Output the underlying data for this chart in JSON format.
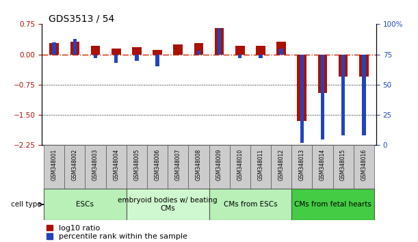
{
  "title": "GDS3513 / 54",
  "samples": [
    "GSM348001",
    "GSM348002",
    "GSM348003",
    "GSM348004",
    "GSM348005",
    "GSM348006",
    "GSM348007",
    "GSM348008",
    "GSM348009",
    "GSM348010",
    "GSM348011",
    "GSM348012",
    "GSM348013",
    "GSM348014",
    "GSM348015",
    "GSM348016"
  ],
  "log10_ratio": [
    0.28,
    0.32,
    0.22,
    0.15,
    0.18,
    0.12,
    0.25,
    0.28,
    0.65,
    0.22,
    0.22,
    0.32,
    -1.65,
    -0.95,
    -0.55,
    -0.55
  ],
  "percentile_rank": [
    85,
    88,
    72,
    68,
    70,
    65,
    75,
    78,
    97,
    72,
    72,
    80,
    2,
    5,
    8,
    8
  ],
  "cell_types": [
    {
      "label": "ESCs",
      "start": 0,
      "end": 4,
      "color": "#b8f0b8"
    },
    {
      "label": "embryoid bodies w/ beating\nCMs",
      "start": 4,
      "end": 8,
      "color": "#d0f8d0"
    },
    {
      "label": "CMs from ESCs",
      "start": 8,
      "end": 12,
      "color": "#b8f0b8"
    },
    {
      "label": "CMs from fetal hearts",
      "start": 12,
      "end": 16,
      "color": "#44cc44"
    }
  ],
  "ylim_left": [
    -2.25,
    0.75
  ],
  "ylim_right": [
    0,
    100
  ],
  "yticks_left": [
    0.75,
    0,
    -0.75,
    -1.5,
    -2.25
  ],
  "yticks_right": [
    100,
    75,
    50,
    25,
    0
  ],
  "bar_color_red": "#aa1100",
  "bar_color_blue": "#2244bb",
  "ref_line_color": "#cc2200",
  "dotted_line_color": "#000000",
  "title_fontsize": 10,
  "tick_label_fontsize": 7.5,
  "sample_label_fontsize": 5.5,
  "cell_type_fontsize": 8,
  "legend_fontsize": 8
}
